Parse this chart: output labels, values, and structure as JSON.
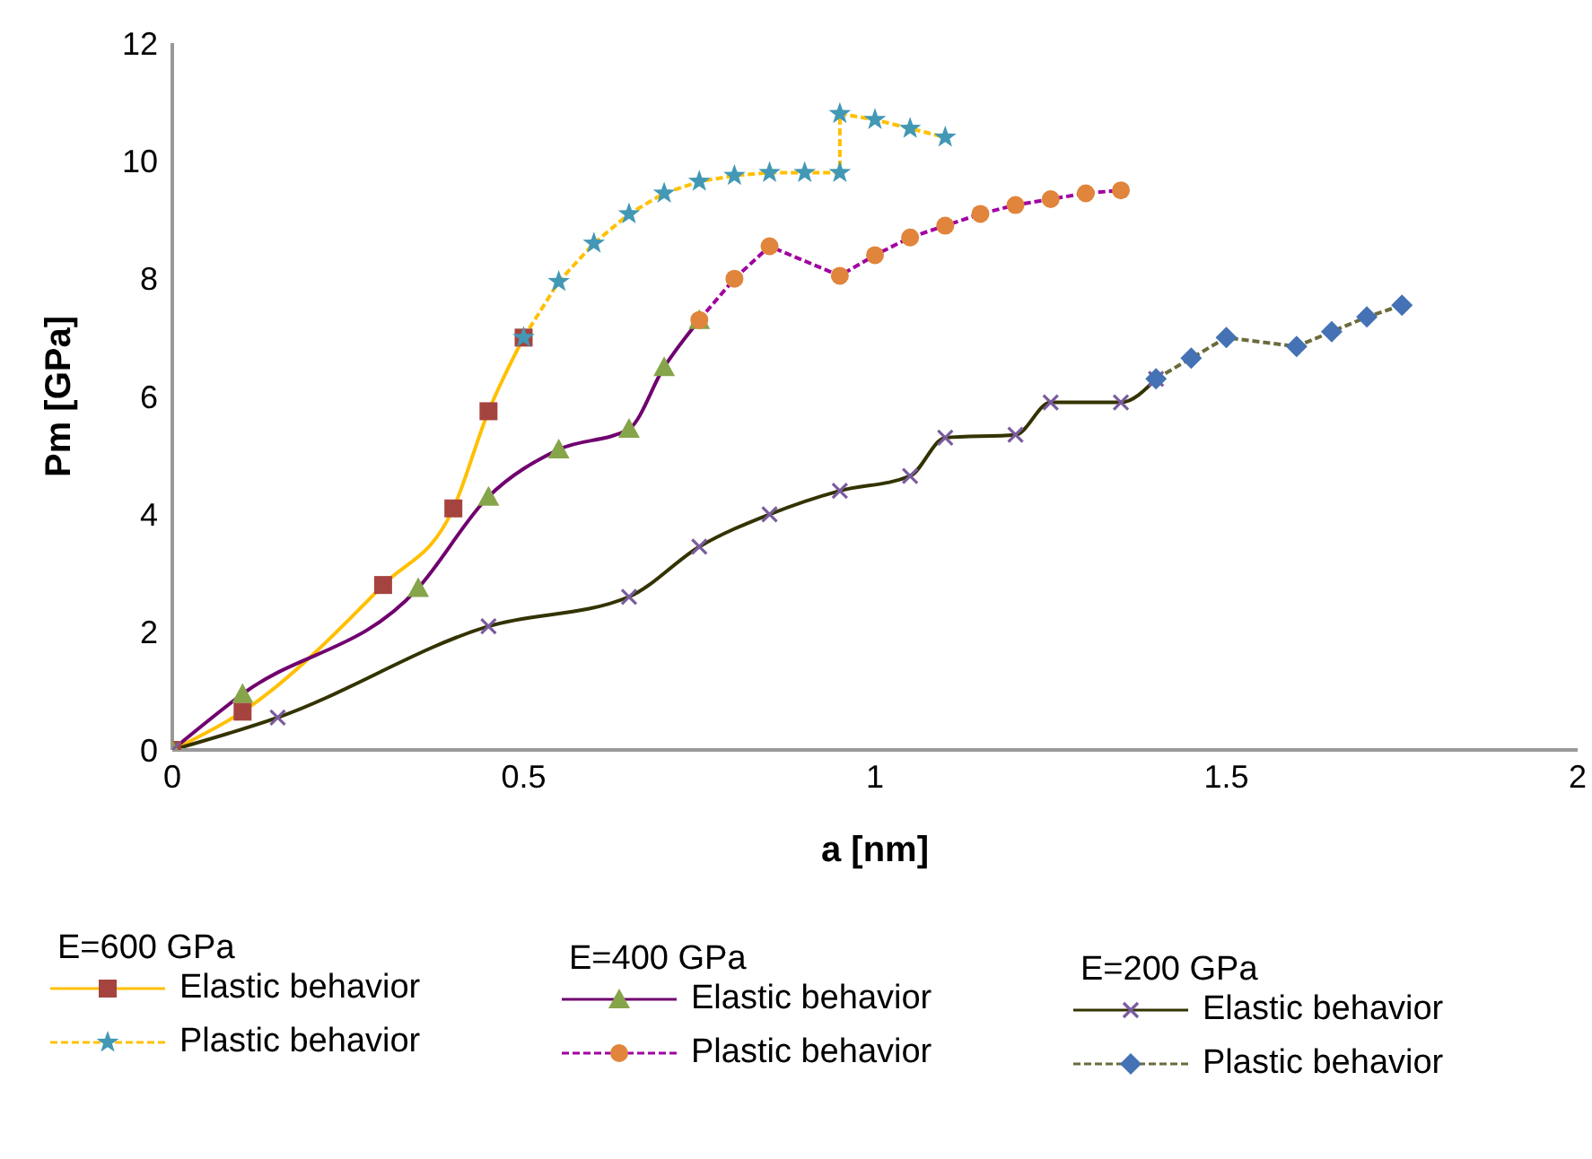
{
  "chart_data": {
    "type": "line",
    "xlabel": "a [nm]",
    "ylabel": "Pm [GPa]",
    "xlim": [
      0,
      2
    ],
    "xticks": [
      0,
      0.5,
      1,
      1.5,
      2
    ],
    "ylim": [
      0,
      12
    ],
    "yticks": [
      0,
      2,
      4,
      6,
      8,
      10,
      12
    ],
    "legend": "bottom",
    "annotations": [
      "E=600 GPa",
      "E=400 GPa",
      "E=200 GPa"
    ],
    "series": [
      {
        "name": "Elastic behavior",
        "color": "#ffc000",
        "marker": "square",
        "line_style": "solid",
        "x": [
          0,
          0.1,
          0.3,
          0.4,
          0.45,
          0.5
        ],
        "values": [
          0,
          0.65,
          2.8,
          4.1,
          5.75,
          7.0
        ],
        "colors": [
          "#a5443f",
          "#a5443f",
          "#a5443f",
          "#a5443f",
          "#a5443f",
          "#a5443f"
        ]
      },
      {
        "name": "Plastic behavior",
        "color": "#ffc000",
        "marker": "star",
        "line_style": "dashed",
        "x": [
          0.5,
          0.55,
          0.6,
          0.65,
          0.7,
          0.75,
          0.8,
          0.85,
          0.9,
          0.95,
          0.95,
          1.0,
          1.05,
          1.1
        ],
        "values": [
          7.0,
          7.95,
          8.6,
          9.1,
          9.45,
          9.65,
          9.75,
          9.8,
          9.8,
          9.8,
          10.8,
          10.7,
          10.55,
          10.4
        ],
        "colors": [
          "#4298b5",
          "#4298b5",
          "#4298b5",
          "#4298b5",
          "#4298b5",
          "#4298b5",
          "#4298b5",
          "#4298b5",
          "#4298b5",
          "#4298b5",
          "#4298b5",
          "#4298b5",
          "#4298b5",
          "#4298b5"
        ]
      },
      {
        "name": "Elastic behavior",
        "color": "#70006f",
        "marker": "triangle",
        "line_style": "solid",
        "x": [
          0,
          0.1,
          0.35,
          0.45,
          0.55,
          0.65,
          0.7,
          0.75
        ],
        "values": [
          0,
          0.95,
          2.75,
          4.3,
          5.1,
          5.45,
          6.5,
          7.3
        ],
        "colors": [
          "#86a44a",
          "#86a44a",
          "#86a44a",
          "#86a44a",
          "#86a44a",
          "#86a44a",
          "#86a44a",
          "#86a44a"
        ]
      },
      {
        "name": "Plastic behavior",
        "color": "#a000a0",
        "marker": "circle",
        "line_style": "dashed",
        "x": [
          0.75,
          0.8,
          0.85,
          0.95,
          1.0,
          1.05,
          1.1,
          1.15,
          1.2,
          1.25,
          1.3,
          1.35
        ],
        "values": [
          7.3,
          8.0,
          8.55,
          8.05,
          8.4,
          8.7,
          8.9,
          9.1,
          9.25,
          9.35,
          9.45,
          9.5
        ],
        "colors": [
          "#e0853b",
          "#e0853b",
          "#e0853b",
          "#e0853b",
          "#e0853b",
          "#e0853b",
          "#e0853b",
          "#e0853b",
          "#e0853b",
          "#e0853b",
          "#e0853b",
          "#e0853b"
        ]
      },
      {
        "name": "Elastic behavior",
        "color": "#333300",
        "marker": "cross",
        "line_style": "solid",
        "x": [
          0,
          0.15,
          0.45,
          0.65,
          0.75,
          0.85,
          0.95,
          1.05,
          1.1,
          1.2,
          1.25,
          1.35,
          1.4
        ],
        "values": [
          0,
          0.55,
          2.1,
          2.6,
          3.45,
          4.0,
          4.4,
          4.65,
          5.3,
          5.35,
          5.9,
          5.9,
          6.3
        ],
        "colors": [
          "#7a5c9e",
          "#7a5c9e",
          "#7a5c9e",
          "#7a5c9e",
          "#7a5c9e",
          "#7a5c9e",
          "#7a5c9e",
          "#7a5c9e",
          "#7a5c9e",
          "#7a5c9e",
          "#7a5c9e",
          "#7a5c9e",
          "#7a5c9e"
        ]
      },
      {
        "name": "Plastic behavior",
        "color": "#6b6b3b",
        "marker": "diamond",
        "line_style": "dashed",
        "x": [
          1.4,
          1.45,
          1.5,
          1.6,
          1.65,
          1.7,
          1.75
        ],
        "values": [
          6.3,
          6.65,
          7.0,
          6.85,
          7.1,
          7.35,
          7.55
        ],
        "colors": [
          "#4472b4",
          "#4472b4",
          "#4472b4",
          "#4472b4",
          "#4472b4",
          "#4472b4",
          "#4472b4"
        ]
      }
    ]
  }
}
